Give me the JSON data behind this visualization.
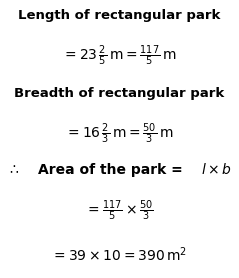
{
  "bg_color": "#ffffff",
  "figsize": [
    2.39,
    2.78
  ],
  "dpi": 100,
  "title1": "Length of rectangular park",
  "title2": "Breadth of rectangular park",
  "line2": "= 23\\,\\frac{2}{5}\\,\\mathrm{m} = \\frac{117}{5}\\,\\mathrm{m}",
  "line4": "= 16\\,\\frac{2}{3}\\,\\mathrm{m} = \\frac{50}{3}\\,\\mathrm{m}",
  "line5a": "\\therefore",
  "line5b": " Area of the park = ",
  "line5c": "l \\times b",
  "line6": "=\\,\\frac{117}{5} \\times \\frac{50}{3}",
  "line7": "= 39 \\times 10 = 390\\,\\mathrm{m}^2"
}
